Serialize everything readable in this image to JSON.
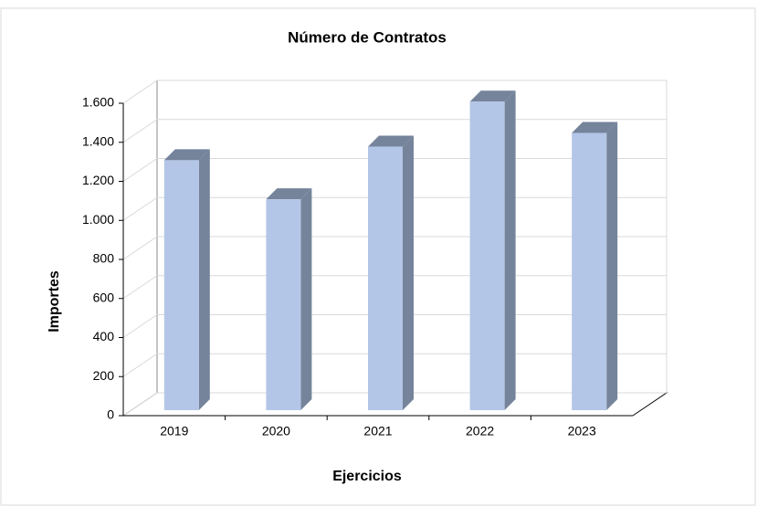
{
  "chart_data": {
    "type": "bar3d",
    "title": "Número de Contratos",
    "x_label": "Ejercicios",
    "y_label": "Importes",
    "categories": [
      "2019",
      "2020",
      "2021",
      "2022",
      "2023"
    ],
    "values": [
      1280,
      1080,
      1350,
      1580,
      1420
    ],
    "color": "#b4c6e7",
    "side_color": "#75849b",
    "ylim": [
      0,
      1600
    ],
    "yticks": [
      0,
      200,
      400,
      600,
      800,
      {
        "value": 1000,
        "label": "1.000"
      },
      {
        "value": 1200,
        "label": "1.200"
      },
      {
        "value": 1400,
        "label": "1.400"
      },
      {
        "value": 1600,
        "label": "1.600"
      }
    ],
    "grid": true
  }
}
